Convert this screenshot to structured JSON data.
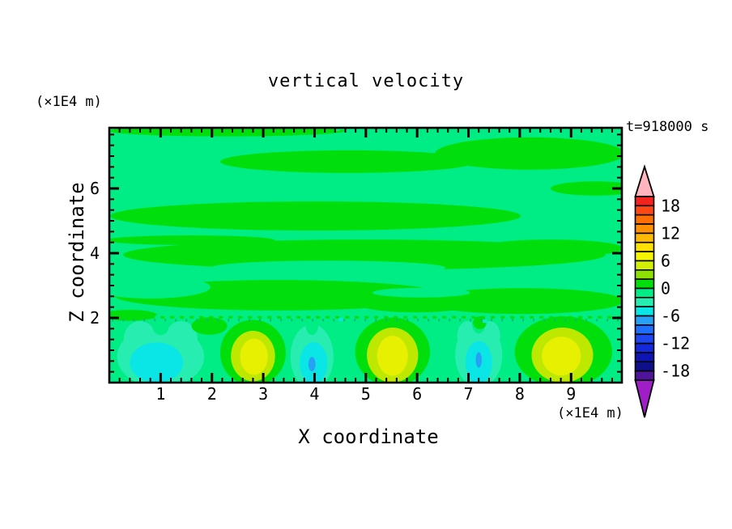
{
  "title": "vertical velocity",
  "time_label": "t=918000 s",
  "y_axis_unit": "(×1E4 m)",
  "x_axis_unit": "(×1E4 m)",
  "axes": {
    "x": {
      "title": "X coordinate",
      "min": 0,
      "max": 9.99,
      "major_ticks": [
        1,
        2,
        3,
        4,
        5,
        6,
        7,
        8,
        9
      ],
      "minor_step": 0.2
    },
    "z": {
      "title": "Z coordinate",
      "min": 0,
      "max": 7.875,
      "major_ticks": [
        2,
        4,
        6
      ],
      "minor_step": 0.3333
    }
  },
  "colorbar": {
    "min": -20,
    "max": 20,
    "cell_span": 2,
    "labels": [
      18,
      12,
      6,
      0,
      -6,
      -12,
      -18
    ],
    "colors_top_to_bottom": [
      "#F5231E",
      "#FF4614",
      "#FF6E00",
      "#FF9100",
      "#FFB900",
      "#FFE100",
      "#F5F500",
      "#D2F000",
      "#8CE100",
      "#00DF0C",
      "#00EC85",
      "#27EDB0",
      "#0AE6E6",
      "#28A0F5",
      "#1E6EFF",
      "#1E46F0",
      "#1428DC",
      "#0F14B4",
      "#0F0F8C",
      "#50149B"
    ],
    "over_color": "#FFB4BE",
    "under_color": "#A01EC8"
  },
  "chart_data": {
    "type": "heatmap",
    "title": "vertical velocity",
    "xlabel": "X coordinate (×1E4 m)",
    "ylabel": "Z coordinate (×1E4 m)",
    "time": "t=918000 s",
    "x_range": [
      0,
      9.99
    ],
    "z_range": [
      0,
      7.875
    ],
    "contour_interval": 2,
    "level_range": [
      -20,
      20
    ],
    "description": "Filled contours of vertical velocity: weak alternating bands of -2..0 (spring green) and 0..2 (green) aloft; a row of convective cells below z=2 with downdrafts to about -8 (cyan/blue) at x=1.0, 4.0, 7.2 and updrafts to about +8 (yellow) at x=2.8, 5.5, 8.8",
    "downdraft_centers_x": [
      1.0,
      3.95,
      7.2
    ],
    "updraft_centers_x": [
      2.8,
      5.52,
      8.83
    ],
    "downdraft_min": -8,
    "updraft_max": 8,
    "palette": {
      "g": "#00DF0C",
      "s": "#00EC85",
      "a": "#27EDB0",
      "c": "#0AE6E6",
      "b": "#28A0F5",
      "h": "#BFE800",
      "y": "#E6F000",
      "d": "#00BA70"
    },
    "background_color_key": "s",
    "shapes": [
      [
        2.29,
        7.78,
        2.3,
        0.17,
        "g"
      ],
      [
        8.2,
        7.08,
        1.85,
        0.5,
        "g"
      ],
      [
        4.66,
        6.83,
        2.5,
        0.35,
        "g"
      ],
      [
        9.47,
        6.0,
        0.87,
        0.22,
        "g"
      ],
      [
        4.02,
        5.15,
        4.0,
        0.45,
        "g"
      ],
      [
        1.58,
        4.4,
        1.65,
        0.15,
        "g"
      ],
      [
        4.97,
        3.95,
        4.7,
        0.47,
        "g"
      ],
      [
        8.6,
        4.15,
        1.42,
        0.27,
        "g"
      ],
      [
        3.31,
        2.7,
        3.23,
        0.47,
        "g"
      ],
      [
        8.05,
        2.52,
        1.97,
        0.4,
        "g"
      ],
      [
        0.39,
        2.08,
        0.55,
        0.17,
        "g"
      ],
      [
        5.97,
        2.42,
        1.1,
        0.25,
        "g"
      ],
      [
        4.26,
        3.55,
        2.29,
        0.22,
        "s"
      ],
      [
        8.32,
        3.23,
        1.7,
        0.27,
        "s"
      ],
      [
        0.79,
        2.95,
        1.18,
        0.35,
        "s"
      ],
      [
        6.08,
        2.78,
        0.95,
        0.15,
        "s"
      ],
      [
        1.0,
        0.8,
        0.85,
        0.95,
        "a"
      ],
      [
        0.6,
        1.35,
        0.32,
        0.55,
        "a"
      ],
      [
        1.4,
        1.35,
        0.32,
        0.55,
        "a"
      ],
      [
        1.0,
        1.8,
        0.17,
        0.33,
        "s"
      ],
      [
        0.92,
        0.62,
        0.52,
        0.62,
        "c"
      ],
      [
        1.95,
        1.75,
        0.35,
        0.27,
        "g"
      ],
      [
        2.8,
        0.92,
        0.64,
        1.02,
        "g"
      ],
      [
        2.8,
        0.82,
        0.43,
        0.78,
        "h"
      ],
      [
        2.82,
        0.8,
        0.27,
        0.56,
        "y"
      ],
      [
        3.95,
        0.8,
        0.42,
        1.0,
        "a"
      ],
      [
        3.95,
        1.75,
        0.12,
        0.28,
        "s"
      ],
      [
        3.98,
        0.6,
        0.27,
        0.65,
        "c"
      ],
      [
        3.95,
        0.57,
        0.07,
        0.22,
        "b"
      ],
      [
        5.52,
        0.95,
        0.73,
        1.06,
        "g"
      ],
      [
        5.52,
        0.85,
        0.5,
        0.85,
        "h"
      ],
      [
        5.52,
        0.83,
        0.3,
        0.62,
        "y"
      ],
      [
        7.2,
        0.85,
        0.46,
        1.0,
        "a"
      ],
      [
        6.98,
        1.45,
        0.2,
        0.45,
        "a"
      ],
      [
        7.42,
        1.45,
        0.2,
        0.45,
        "a"
      ],
      [
        7.2,
        1.82,
        0.13,
        0.3,
        "s"
      ],
      [
        7.2,
        0.62,
        0.26,
        0.66,
        "c"
      ],
      [
        7.2,
        0.7,
        0.06,
        0.24,
        "b"
      ],
      [
        7.22,
        1.85,
        0.13,
        0.2,
        "g"
      ],
      [
        8.85,
        0.95,
        0.95,
        1.1,
        "g"
      ],
      [
        8.83,
        0.85,
        0.6,
        0.85,
        "h"
      ],
      [
        8.81,
        0.82,
        0.38,
        0.6,
        "y"
      ]
    ],
    "speckle_lines": [
      {
        "z": 2.02,
        "x1": 0.05,
        "x2": 9.95,
        "color_key": "g",
        "dash": "5 7"
      },
      {
        "z": 1.93,
        "x1": 0.05,
        "x2": 9.95,
        "color_key": "d",
        "dash": "2 11"
      },
      {
        "z": 7.82,
        "x1": 4.4,
        "x2": 7.9,
        "color_key": "s",
        "dash": "6 9"
      }
    ],
    "cyan_specks": [
      [
        4.5,
        1.95
      ],
      [
        7.31,
        1.9
      ]
    ]
  }
}
